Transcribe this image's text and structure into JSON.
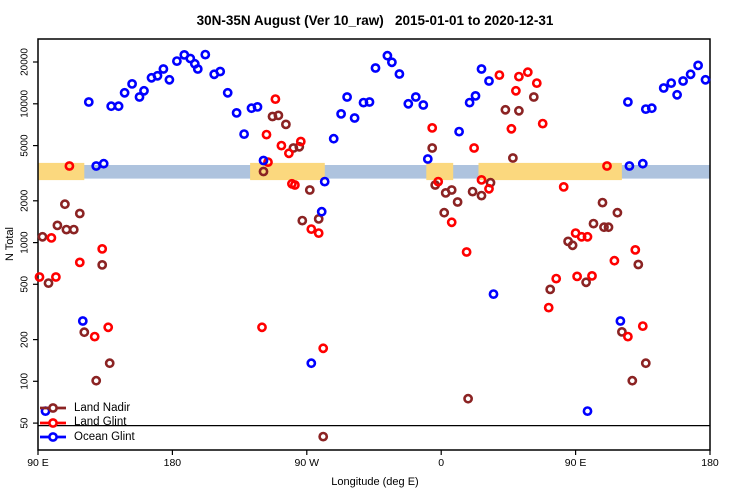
{
  "title": "30N-35N August (Ver 10_raw)   2015-01-01 to 2020-12-31",
  "chart_data": {
    "type": "scatter",
    "title": "30N-35N August (Ver 10_raw)   2015-01-01 to 2020-12-31",
    "xlabel": "Longitude (deg E)",
    "ylabel": "N Total",
    "x_axis": {
      "lim": [
        90,
        540
      ],
      "ticks": [
        {
          "value": 90,
          "label": "90 E"
        },
        {
          "value": 180,
          "label": "180"
        },
        {
          "value": 270,
          "label": "90 W"
        },
        {
          "value": 360,
          "label": "0"
        },
        {
          "value": 450,
          "label": "90 E"
        },
        {
          "value": 540,
          "label": "180"
        }
      ]
    },
    "y_axis": {
      "scale": "log",
      "lim": [
        32,
        29300
      ],
      "ticks": [
        50,
        100,
        200,
        500,
        1000,
        2000,
        5000,
        10000,
        20000
      ]
    },
    "reference_line_n": 48,
    "band": {
      "base_color": "#AEC3DE",
      "base_range": [
        90,
        540
      ],
      "base_n": [
        2890,
        3620
      ],
      "yellow_color": "#FBD87E",
      "yellow_n": [
        2820,
        3750
      ],
      "yellow_segments": [
        [
          90,
          121
        ],
        [
          232,
          282
        ],
        [
          350,
          368
        ],
        [
          385,
          481
        ]
      ]
    },
    "legend": {
      "position": "bottom-left"
    },
    "series": [
      {
        "name": "Land Nadir",
        "color": "#8B2323",
        "points": [
          [
            247,
            8100
          ],
          [
            251,
            8250
          ],
          [
            256,
            7100
          ],
          [
            261,
            4800
          ],
          [
            265,
            4900
          ],
          [
            422,
            11200
          ],
          [
            403,
            9050
          ],
          [
            412,
            8900
          ],
          [
            354,
            4800
          ],
          [
            408,
            4070
          ],
          [
            241,
            3250
          ],
          [
            108,
            1890
          ],
          [
            118,
            1620
          ],
          [
            103,
            1330
          ],
          [
            109,
            1240
          ],
          [
            114,
            1240
          ],
          [
            93,
            1100
          ],
          [
            133,
            690
          ],
          [
            97,
            510
          ],
          [
            121,
            226
          ],
          [
            267,
            1440
          ],
          [
            278,
            1480
          ],
          [
            272,
            2390
          ],
          [
            356,
            2600
          ],
          [
            363,
            2280
          ],
          [
            367,
            2390
          ],
          [
            371,
            1960
          ],
          [
            381,
            2330
          ],
          [
            387,
            2180
          ],
          [
            393,
            2700
          ],
          [
            362,
            1640
          ],
          [
            468,
            1940
          ],
          [
            478,
            1640
          ],
          [
            462,
            1370
          ],
          [
            469,
            1290
          ],
          [
            472,
            1290
          ],
          [
            445,
            1020
          ],
          [
            448,
            955
          ],
          [
            492,
            695
          ],
          [
            457,
            517
          ],
          [
            433,
            460
          ],
          [
            481,
            227
          ],
          [
            138,
            135
          ],
          [
            129,
            101
          ],
          [
            281,
            40
          ],
          [
            497,
            135
          ],
          [
            488,
            101
          ],
          [
            378,
            75
          ]
        ]
      },
      {
        "name": "Land Glint",
        "color": "#FF0000",
        "points": [
          [
            249,
            10800
          ],
          [
            243,
            6000
          ],
          [
            253,
            5000
          ],
          [
            258,
            4400
          ],
          [
            266,
            5350
          ],
          [
            111,
            3560
          ],
          [
            244,
            3800
          ],
          [
            471,
            3560
          ],
          [
            260,
            2650
          ],
          [
            358,
            2750
          ],
          [
            399,
            16100
          ],
          [
            412,
            15700
          ],
          [
            418,
            16900
          ],
          [
            424,
            14100
          ],
          [
            410,
            12400
          ],
          [
            428,
            7200
          ],
          [
            354,
            6700
          ],
          [
            382,
            4800
          ],
          [
            407,
            6600
          ],
          [
            99,
            1080
          ],
          [
            118,
            720
          ],
          [
            133,
            900
          ],
          [
            102,
            565
          ],
          [
            91,
            565
          ],
          [
            128,
            210
          ],
          [
            137,
            245
          ],
          [
            240,
            245
          ],
          [
            262,
            2600
          ],
          [
            273,
            1250
          ],
          [
            278,
            1170
          ],
          [
            387,
            2830
          ],
          [
            392,
            2440
          ],
          [
            367,
            1400
          ],
          [
            377,
            855
          ],
          [
            442,
            2520
          ],
          [
            450,
            1170
          ],
          [
            454,
            1100
          ],
          [
            458,
            1100
          ],
          [
            490,
            885
          ],
          [
            476,
            740
          ],
          [
            437,
            550
          ],
          [
            451,
            570
          ],
          [
            461,
            575
          ],
          [
            432,
            340
          ],
          [
            495,
            250
          ],
          [
            485,
            210
          ],
          [
            281,
            173
          ]
        ]
      },
      {
        "name": "Ocean Glint",
        "color": "#0000FF",
        "points": [
          [
            124,
            10300
          ],
          [
            139,
            9600
          ],
          [
            144,
            9600
          ],
          [
            148,
            12000
          ],
          [
            153,
            13900
          ],
          [
            158,
            11200
          ],
          [
            161,
            12400
          ],
          [
            166,
            15400
          ],
          [
            170,
            15900
          ],
          [
            174,
            17800
          ],
          [
            178,
            14900
          ],
          [
            183,
            20300
          ],
          [
            188,
            22500
          ],
          [
            192,
            21200
          ],
          [
            195,
            19400
          ],
          [
            197,
            17800
          ],
          [
            202,
            22600
          ],
          [
            208,
            16300
          ],
          [
            212,
            17100
          ],
          [
            217,
            12000
          ],
          [
            223,
            8600
          ],
          [
            228,
            6050
          ],
          [
            233,
            9300
          ],
          [
            237,
            9500
          ],
          [
            288,
            5600
          ],
          [
            293,
            8450
          ],
          [
            297,
            11200
          ],
          [
            302,
            7900
          ],
          [
            308,
            10200
          ],
          [
            312,
            10300
          ],
          [
            316,
            18100
          ],
          [
            324,
            22200
          ],
          [
            327,
            19900
          ],
          [
            332,
            16400
          ],
          [
            338,
            10000
          ],
          [
            343,
            11200
          ],
          [
            348,
            9800
          ],
          [
            372,
            6300
          ],
          [
            379,
            10200
          ],
          [
            383,
            11400
          ],
          [
            387,
            17800
          ],
          [
            392,
            14600
          ],
          [
            351,
            4000
          ],
          [
            129,
            3560
          ],
          [
            134,
            3700
          ],
          [
            241,
            3900
          ],
          [
            282,
            2750
          ],
          [
            280,
            1670
          ],
          [
            486,
            3560
          ],
          [
            495,
            3700
          ],
          [
            485,
            10300
          ],
          [
            497,
            9150
          ],
          [
            501,
            9300
          ],
          [
            509,
            13000
          ],
          [
            514,
            14100
          ],
          [
            518,
            11600
          ],
          [
            522,
            14600
          ],
          [
            527,
            16300
          ],
          [
            532,
            18900
          ],
          [
            537,
            14900
          ],
          [
            120,
            272
          ],
          [
            395,
            425
          ],
          [
            480,
            272
          ],
          [
            273,
            135
          ],
          [
            95,
            61
          ],
          [
            458,
            61
          ]
        ]
      }
    ]
  }
}
